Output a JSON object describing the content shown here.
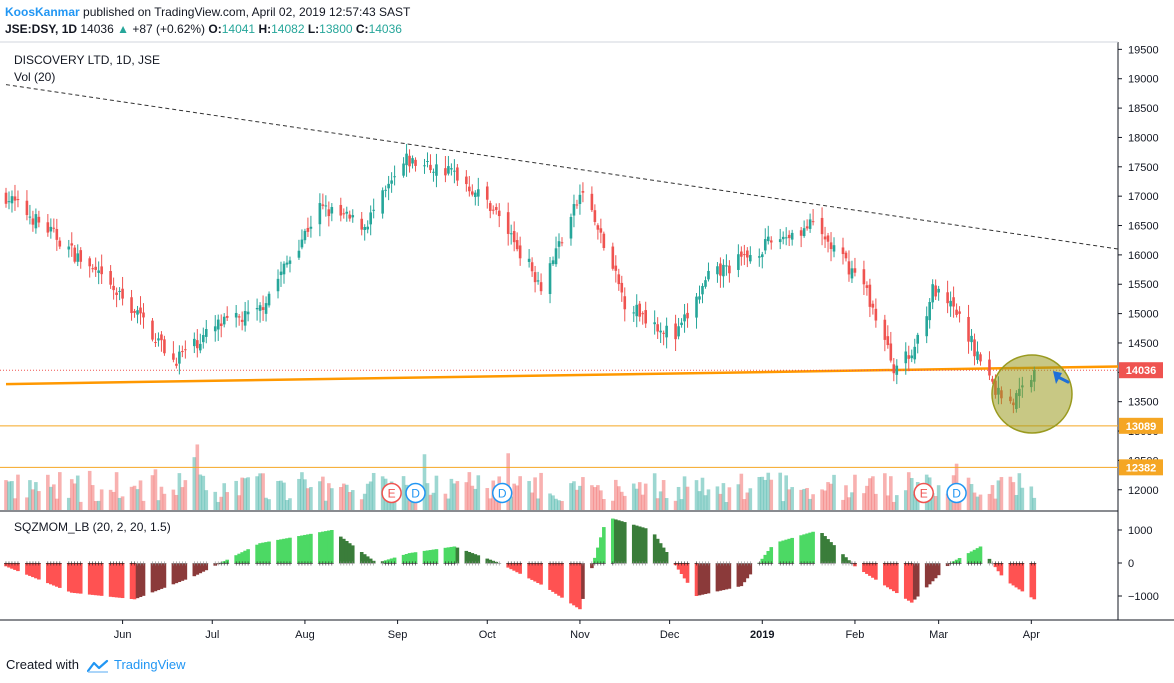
{
  "header": {
    "author": "KoosKanmar",
    "published": "published on TradingView.com, April 02, 2019 12:57:43 SAST",
    "symbol": "JSE:DSY, 1D",
    "last": "14036",
    "change": "+87 (+0.62%)",
    "o_label": "O:",
    "o": "14041",
    "h_label": "H:",
    "h": "14082",
    "l_label": "L:",
    "l": "13800",
    "c_label": "C:",
    "c": "14036"
  },
  "legend": {
    "title": "DISCOVERY LTD, 1D, JSE",
    "vol": "Vol (20)",
    "indicator": "SQZMOM_LB (20, 2, 20, 1.5)"
  },
  "footer": {
    "created": "Created with",
    "brand": "TradingView"
  },
  "colors": {
    "up": "#26a69a",
    "down": "#ef5350",
    "trendline": "#ff9800",
    "resistance": "#333333",
    "level": "#f5a623",
    "price_line": "#ef5350",
    "highlight": "#9a9a1f",
    "arrow": "#1e6fd9",
    "mom_up_strong": "#4cd964",
    "mom_up_weak": "#3a7d3a",
    "mom_dn_strong": "#ff5252",
    "mom_dn_weak": "#8b3a3a"
  },
  "chart_data": [
    {
      "type": "candlestick",
      "title": "DISCOVERY LTD, 1D, JSE",
      "ylim": [
        11800,
        19600
      ],
      "yticks": [
        12000,
        12500,
        13000,
        13500,
        14000,
        14500,
        15000,
        15500,
        16000,
        16500,
        17000,
        17500,
        18000,
        18500,
        19000,
        19500
      ],
      "xticks": [
        "Jun",
        "Jul",
        "Aug",
        "Sep",
        "Oct",
        "Nov",
        "Dec",
        "2019",
        "Feb",
        "Mar",
        "Apr"
      ],
      "x_range": [
        "2018-04-23",
        "2019-04-30"
      ],
      "tick_dates": [
        "2018-06-01",
        "2018-07-01",
        "2018-08-01",
        "2018-09-01",
        "2018-10-01",
        "2018-11-01",
        "2018-12-01",
        "2019-01-01",
        "2019-02-01",
        "2019-03-01",
        "2019-04-01"
      ],
      "anchor_dates": [
        "2018-04-23",
        "2018-05-10",
        "2018-06-06",
        "2018-06-18",
        "2018-07-03",
        "2018-07-16",
        "2018-08-06",
        "2018-08-21",
        "2018-09-04",
        "2018-09-20",
        "2018-10-03",
        "2018-10-19",
        "2018-11-02",
        "2018-11-16",
        "2018-12-03",
        "2018-12-14",
        "2019-01-07",
        "2019-01-18",
        "2019-02-04",
        "2019-02-14",
        "2019-02-20",
        "2019-02-27",
        "2019-03-07",
        "2019-03-20",
        "2019-03-26",
        "2019-04-02"
      ],
      "anchor_close": [
        17000,
        16300,
        15000,
        14200,
        14800,
        15000,
        16800,
        16500,
        17600,
        17400,
        16800,
        15500,
        17100,
        15200,
        14600,
        15600,
        16300,
        16500,
        15500,
        14100,
        14300,
        15400,
        15000,
        13700,
        13500,
        14036
      ],
      "last_price": 14036,
      "levels": [
        {
          "label": "14036",
          "value": 14036
        },
        {
          "label": "13089",
          "value": 13089
        },
        {
          "label": "12382",
          "value": 12382
        }
      ],
      "trendlines": [
        {
          "name": "support",
          "from": [
            "2018-04-23",
            13800
          ],
          "to": [
            "2019-04-30",
            14100
          ]
        },
        {
          "name": "resistance",
          "from": [
            "2018-04-23",
            18900
          ],
          "to": [
            "2019-04-30",
            16100
          ]
        }
      ],
      "events": [
        {
          "label": "E",
          "date": "2018-08-30"
        },
        {
          "label": "D",
          "date": "2018-09-07"
        },
        {
          "label": "D",
          "date": "2018-10-06"
        },
        {
          "label": "E",
          "date": "2019-02-24"
        },
        {
          "label": "D",
          "date": "2019-03-07"
        }
      ]
    },
    {
      "type": "histogram",
      "title": "SQZMOM_LB (20, 2, 20, 1.5)",
      "ylim": [
        -1700,
        1500
      ],
      "yticks": [
        -1000,
        0,
        1000
      ],
      "yticklabels": [
        "−1000",
        "0",
        "1000"
      ],
      "anchor_dates": [
        "2018-04-23",
        "2018-05-15",
        "2018-06-05",
        "2018-06-25",
        "2018-07-17",
        "2018-08-10",
        "2018-08-25",
        "2018-09-05",
        "2018-09-20",
        "2018-10-05",
        "2018-10-20",
        "2018-11-01",
        "2018-11-10",
        "2018-11-25",
        "2018-12-10",
        "2018-12-25",
        "2019-01-05",
        "2019-01-20",
        "2019-02-01",
        "2019-02-20",
        "2019-03-05",
        "2019-03-15",
        "2019-03-23",
        "2019-04-02"
      ],
      "anchor_values": [
        -100,
        -900,
        -1100,
        -400,
        600,
        1000,
        0,
        300,
        500,
        0,
        -700,
        -1400,
        1400,
        1000,
        -1000,
        -700,
        600,
        1000,
        -100,
        -1200,
        0,
        500,
        -500,
        -1100
      ]
    }
  ]
}
